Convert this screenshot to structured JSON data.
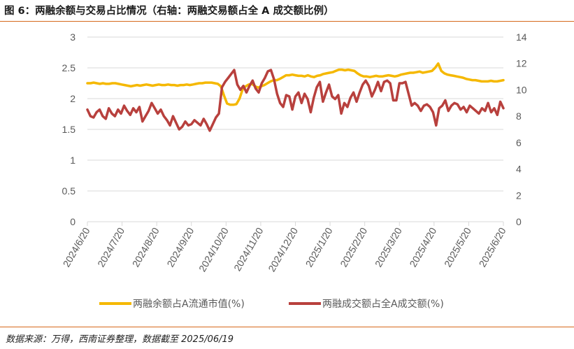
{
  "header": {
    "title": "图 6：两融余额与交易占比情况（右轴：两融交易额占全 A 成交额比例）"
  },
  "footer": {
    "source": "数据来源：万得，西南证券整理，数据截至 2025/06/19"
  },
  "chart_data": {
    "type": "line",
    "title": "图 6：两融余额与交易占比情况（右轴：两融交易额占全 A 成交额比例）",
    "x_tick_labels": [
      "2024/6/20",
      "2024/7/20",
      "2024/8/20",
      "2024/9/20",
      "2024/10/20",
      "2024/11/20",
      "2024/12/20",
      "2025/1/20",
      "2025/2/20",
      "2025/3/20",
      "2025/4/20",
      "2025/5/20",
      "2025/6/20"
    ],
    "left_axis": {
      "ylim": [
        0,
        3
      ],
      "ticks": [
        "0",
        "0.5",
        "1",
        "1.5",
        "2",
        "2.5",
        "3"
      ]
    },
    "right_axis": {
      "ylim": [
        0,
        14
      ],
      "ticks": [
        "0",
        "2",
        "4",
        "6",
        "8",
        "10",
        "12",
        "14"
      ]
    },
    "legend_position": "bottom-center",
    "colors": {
      "balance": "#f5b800",
      "turnover": "#b8403d",
      "grid": "#d9d9d9",
      "rule": "#d6691b"
    },
    "series": [
      {
        "name": "两融余额占A流通市值(%)",
        "axis": "left",
        "values": [
          2.25,
          2.25,
          2.26,
          2.25,
          2.24,
          2.25,
          2.24,
          2.24,
          2.25,
          2.25,
          2.24,
          2.23,
          2.22,
          2.21,
          2.2,
          2.21,
          2.22,
          2.21,
          2.22,
          2.23,
          2.22,
          2.21,
          2.22,
          2.23,
          2.22,
          2.22,
          2.23,
          2.22,
          2.22,
          2.21,
          2.22,
          2.22,
          2.23,
          2.22,
          2.23,
          2.24,
          2.25,
          2.25,
          2.26,
          2.26,
          2.26,
          2.25,
          2.24,
          2.2,
          2.05,
          1.92,
          1.9,
          1.9,
          1.91,
          2.0,
          2.15,
          2.2,
          2.23,
          2.24,
          2.2,
          2.18,
          2.2,
          2.22,
          2.25,
          2.28,
          2.3,
          2.3,
          2.32,
          2.35,
          2.38,
          2.38,
          2.39,
          2.38,
          2.37,
          2.37,
          2.36,
          2.38,
          2.36,
          2.35,
          2.37,
          2.38,
          2.4,
          2.41,
          2.42,
          2.43,
          2.45,
          2.47,
          2.47,
          2.46,
          2.47,
          2.46,
          2.45,
          2.41,
          2.38,
          2.36,
          2.36,
          2.35,
          2.36,
          2.37,
          2.36,
          2.36,
          2.37,
          2.38,
          2.37,
          2.36,
          2.37,
          2.39,
          2.4,
          2.41,
          2.42,
          2.42,
          2.43,
          2.44,
          2.42,
          2.43,
          2.44,
          2.45,
          2.5,
          2.57,
          2.45,
          2.41,
          2.39,
          2.38,
          2.37,
          2.36,
          2.35,
          2.34,
          2.32,
          2.31,
          2.3,
          2.3,
          2.29,
          2.28,
          2.28,
          2.28,
          2.29,
          2.28,
          2.28,
          2.29,
          2.3
        ]
      },
      {
        "name": "两融成交额占全A成交额(%)",
        "axis": "right",
        "values": [
          8.5,
          8.0,
          7.9,
          8.3,
          8.5,
          8.0,
          7.8,
          8.6,
          8.2,
          8.0,
          8.5,
          8.2,
          8.8,
          8.4,
          8.1,
          8.6,
          8.3,
          8.7,
          7.6,
          8.0,
          8.4,
          9.0,
          8.6,
          8.2,
          8.5,
          8.0,
          7.7,
          7.3,
          8.0,
          7.5,
          7.0,
          7.2,
          7.6,
          7.3,
          7.4,
          7.7,
          7.5,
          7.3,
          7.8,
          7.4,
          6.9,
          7.4,
          7.9,
          8.2,
          10.2,
          10.6,
          10.9,
          11.2,
          11.5,
          10.4,
          10.0,
          10.3,
          9.8,
          10.3,
          10.7,
          10.1,
          9.8,
          10.5,
          10.9,
          11.4,
          11.5,
          10.8,
          9.7,
          9.0,
          8.7,
          9.6,
          9.5,
          8.5,
          9.5,
          9.8,
          9.0,
          9.7,
          9.3,
          8.3,
          9.4,
          10.2,
          10.6,
          9.1,
          9.8,
          10.4,
          9.5,
          9.3,
          9.6,
          8.2,
          9.0,
          8.7,
          9.4,
          9.8,
          9.1,
          9.8,
          10.4,
          10.7,
          10.3,
          9.5,
          10.0,
          10.6,
          9.9,
          10.6,
          10.7,
          10.5,
          9.2,
          9.2,
          10.5,
          10.5,
          10.6,
          9.7,
          8.8,
          9.0,
          8.8,
          8.4,
          8.8,
          8.9,
          8.7,
          8.3,
          7.3,
          8.6,
          8.8,
          9.2,
          8.4,
          8.8,
          9.0,
          8.9,
          8.5,
          8.7,
          8.3,
          8.8,
          8.6,
          8.4,
          8.2,
          8.6,
          8.4,
          9.0,
          8.3,
          8.6,
          8.1,
          9.1,
          8.6
        ]
      }
    ]
  }
}
